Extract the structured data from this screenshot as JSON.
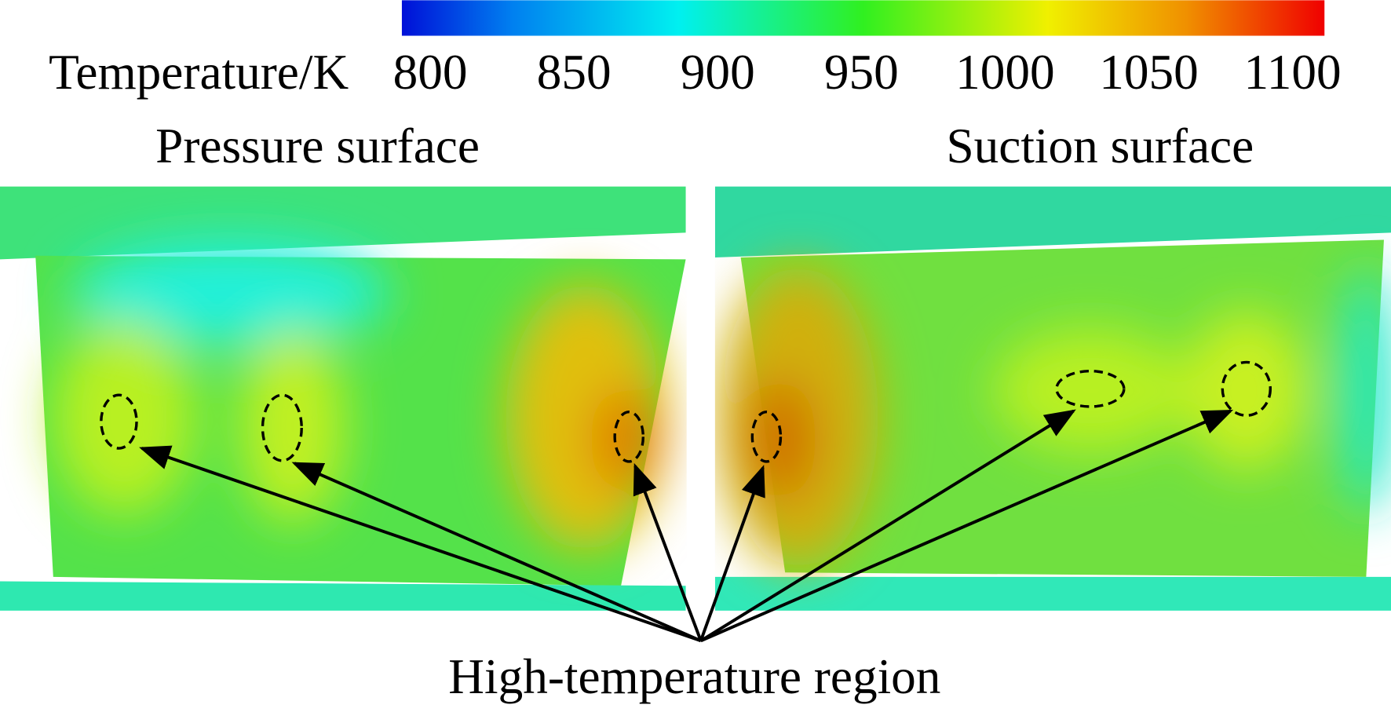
{
  "colorbar": {
    "label": "Temperature/K",
    "ticks": [
      800,
      850,
      900,
      950,
      1000,
      1050,
      1100
    ]
  },
  "panels": [
    {
      "title": "Pressure surface"
    },
    {
      "title": "Suction surface"
    }
  ],
  "annotation": "High-temperature region"
}
